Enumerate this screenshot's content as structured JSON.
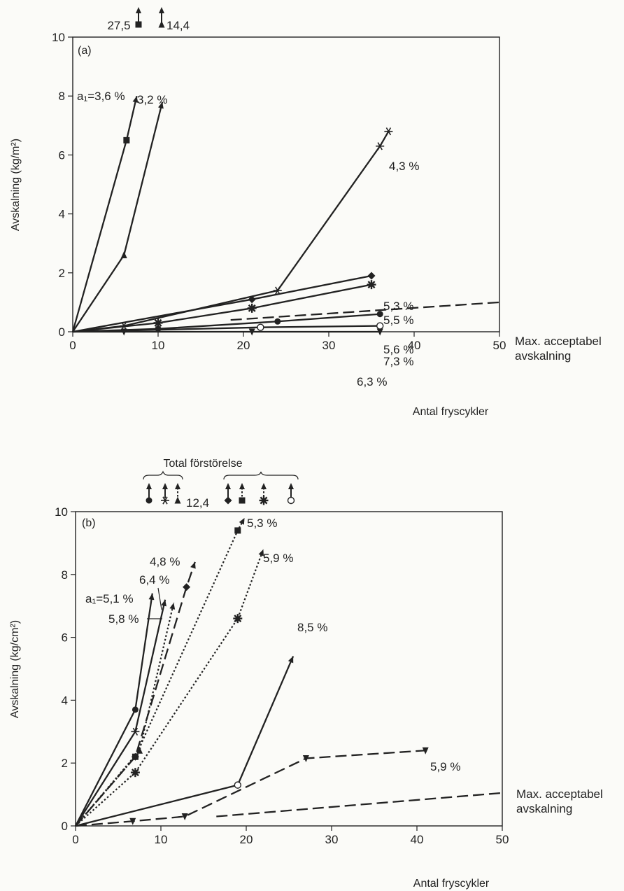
{
  "chart_data": [
    {
      "type": "line",
      "panel": "(a)",
      "xlabel": "Antal fryscykler",
      "ylabel": "Avskalning (kg/m²)",
      "xlim": [
        0,
        50
      ],
      "ylim": [
        0,
        10
      ],
      "xticks": [
        "0",
        "10",
        "20",
        "30",
        "40",
        "50"
      ],
      "yticks": [
        "0",
        "2",
        "4",
        "6",
        "8",
        "10"
      ],
      "grid": false,
      "offscale_labels": [
        "27,5",
        "14,4"
      ],
      "series": [
        {
          "name": "a₁=3,6 %",
          "marker": "square",
          "style": "solid",
          "x": [
            0,
            6.3,
            7.5
          ],
          "y": [
            0,
            6.5,
            8.0
          ]
        },
        {
          "name": "3,2 %",
          "marker": "triangle",
          "style": "solid",
          "x": [
            0,
            6,
            10.5
          ],
          "y": [
            0,
            2.6,
            7.8
          ]
        },
        {
          "name": "4,3 %",
          "marker": "asterisk",
          "style": "solid",
          "x": [
            0,
            6,
            24,
            36,
            37
          ],
          "y": [
            0,
            0.2,
            1.4,
            6.3,
            6.8
          ]
        },
        {
          "name": "5,3 %",
          "marker": "diamond",
          "style": "solid",
          "x": [
            0,
            21,
            35
          ],
          "y": [
            0,
            1.1,
            1.9
          ]
        },
        {
          "name": "5,5 %",
          "marker": "star",
          "style": "solid",
          "x": [
            0,
            10,
            21,
            35
          ],
          "y": [
            0,
            0.3,
            0.8,
            1.6
          ]
        },
        {
          "name": "5,6 %",
          "marker": "circle",
          "style": "solid",
          "x": [
            0,
            10,
            24,
            36
          ],
          "y": [
            0,
            0.1,
            0.35,
            0.6
          ]
        },
        {
          "name": "7,3 %",
          "marker": "open-circle",
          "style": "solid",
          "x": [
            0,
            22,
            36
          ],
          "y": [
            0,
            0.15,
            0.2
          ]
        },
        {
          "name": "6,3 %",
          "marker": "inverted-triangle",
          "style": "solid",
          "x": [
            0,
            6,
            21,
            36
          ],
          "y": [
            0,
            0,
            0,
            0
          ]
        },
        {
          "name": "Max. acceptabel avskalning",
          "marker": "none",
          "style": "dashed",
          "x": [
            18.5,
            50
          ],
          "y": [
            0.4,
            1.0
          ]
        }
      ],
      "annotations": [
        "Max. acceptabel",
        "avskalning"
      ]
    },
    {
      "type": "line",
      "panel": "(b)",
      "xlabel": "Antal fryscykler",
      "ylabel": "Avskalning (kg/cm²)",
      "xlim": [
        0,
        50
      ],
      "ylim": [
        0,
        10
      ],
      "xticks": [
        "0",
        "10",
        "20",
        "30",
        "40",
        "50"
      ],
      "yticks": [
        "0",
        "2",
        "4",
        "6",
        "8",
        "10"
      ],
      "grid": false,
      "header": "Total förstörelse",
      "offscale_labels": [
        "12,4"
      ],
      "series": [
        {
          "name": "a₁=5,1 %",
          "marker": "circle",
          "style": "solid",
          "x": [
            0,
            7,
            9
          ],
          "y": [
            0,
            3.7,
            7.4
          ]
        },
        {
          "name": "5,8 %",
          "marker": "asterisk",
          "style": "solid",
          "x": [
            0,
            7,
            10.5
          ],
          "y": [
            0,
            3.0,
            7.2
          ]
        },
        {
          "name": "6,4 %",
          "marker": "triangle",
          "style": "dotted",
          "x": [
            0,
            7.5,
            11.5
          ],
          "y": [
            0,
            2.4,
            7.1
          ]
        },
        {
          "name": "4,8 %",
          "marker": "diamond",
          "style": "dashed",
          "x": [
            0,
            7,
            13,
            14
          ],
          "y": [
            0,
            2.2,
            7.6,
            8.4
          ]
        },
        {
          "name": "5,3 %",
          "marker": "square",
          "style": "dotted",
          "x": [
            0,
            7,
            19,
            19.8
          ],
          "y": [
            0,
            2.2,
            9.4,
            9.8
          ]
        },
        {
          "name": "5,9 %",
          "marker": "star",
          "style": "dotted",
          "x": [
            0,
            7,
            19,
            22
          ],
          "y": [
            0,
            1.7,
            6.6,
            8.8
          ]
        },
        {
          "name": "8,5 %",
          "marker": "open-circle",
          "style": "solid",
          "x": [
            0,
            19,
            25.5
          ],
          "y": [
            0,
            1.3,
            5.4
          ]
        },
        {
          "name": "5,9 %",
          "marker": "inverted-triangle",
          "style": "dashed",
          "x": [
            0,
            6.7,
            12.8,
            27,
            41
          ],
          "y": [
            0,
            0.15,
            0.3,
            2.15,
            2.4
          ]
        },
        {
          "name": "Max. acceptabel avskalning",
          "marker": "none",
          "style": "dashed",
          "x": [
            16.5,
            50
          ],
          "y": [
            0.3,
            1.05
          ]
        }
      ],
      "annotations": [
        "Max. acceptabel",
        "avskalning"
      ]
    }
  ]
}
